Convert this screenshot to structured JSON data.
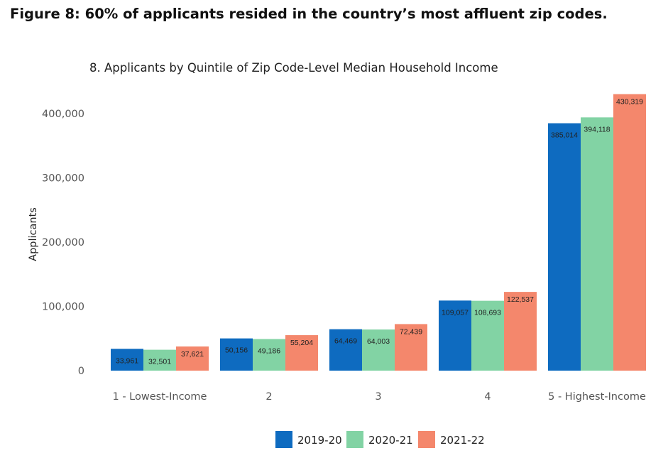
{
  "figure_title": "Figure 8: 60% of applicants resided in the country’s most affluent zip codes.",
  "chart_data": {
    "type": "bar",
    "title": "8. Applicants by Quintile of Zip Code-Level Median Household Income",
    "xlabel": "",
    "ylabel": "Applicants",
    "categories": [
      "1 - Lowest-Income",
      "2",
      "3",
      "4",
      "5 - Highest-Income"
    ],
    "series": [
      {
        "name": "2019-20",
        "color": "#0e6bc0",
        "values": [
          33961,
          50156,
          64469,
          109057,
          385014
        ],
        "labels": [
          "33,961",
          "50,156",
          "64,469",
          "109,057",
          "385,014"
        ]
      },
      {
        "name": "2020-21",
        "color": "#82d3a4",
        "values": [
          32501,
          49186,
          64003,
          108693,
          394118
        ],
        "labels": [
          "32,501",
          "49,186",
          "64,003",
          "108,693",
          "394,118"
        ]
      },
      {
        "name": "2021-22",
        "color": "#f4876c",
        "values": [
          37621,
          55204,
          72439,
          122537,
          430319
        ],
        "labels": [
          "37,621",
          "55,204",
          "72,439",
          "122,537",
          "430,319"
        ]
      }
    ],
    "yticks": [
      0,
      100000,
      200000,
      300000,
      400000
    ],
    "ytick_labels": [
      "0",
      "100,000",
      "200,000",
      "300,000",
      "400,000"
    ],
    "ylim": [
      0,
      450000
    ],
    "grid": false,
    "legend_position": "bottom-center"
  }
}
